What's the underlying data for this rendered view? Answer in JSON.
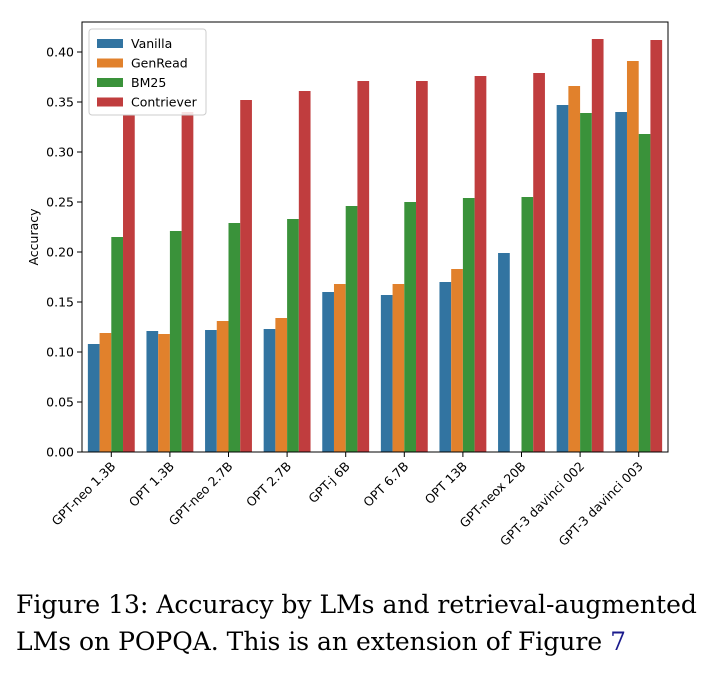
{
  "chart_data": {
    "type": "bar",
    "title": "",
    "xlabel": "",
    "ylabel": "Accuracy",
    "ylim": [
      0,
      0.43
    ],
    "yticks": [
      "0.00",
      "0.05",
      "0.10",
      "0.15",
      "0.20",
      "0.25",
      "0.30",
      "0.35",
      "0.40"
    ],
    "legend_position": "top-left",
    "categories": [
      "GPT-neo 1.3B",
      "OPT 1.3B",
      "GPT-neo 2.7B",
      "OPT 2.7B",
      "GPT-j 6B",
      "OPT 6.7B",
      "OPT 13B",
      "GPT-neox 20B",
      "GPT-3 davinci 002",
      "GPT-3 davinci 003"
    ],
    "series": [
      {
        "name": "Vanilla",
        "color": "#3274a1",
        "values": [
          0.108,
          0.121,
          0.122,
          0.123,
          0.16,
          0.157,
          0.17,
          0.199,
          0.347,
          0.34
        ]
      },
      {
        "name": "GenRead",
        "color": "#e1812c",
        "values": [
          0.119,
          0.118,
          0.131,
          0.134,
          0.168,
          0.168,
          0.183,
          null,
          0.366,
          0.391
        ]
      },
      {
        "name": "BM25",
        "color": "#3a923a",
        "values": [
          0.215,
          0.221,
          0.229,
          0.233,
          0.246,
          0.25,
          0.254,
          0.255,
          0.339,
          0.318
        ]
      },
      {
        "name": "Contriever",
        "color": "#c03d3e",
        "values": [
          0.337,
          0.34,
          0.352,
          0.361,
          0.371,
          0.371,
          0.376,
          0.379,
          0.413,
          0.412
        ]
      }
    ]
  },
  "caption": {
    "label": "Figure 13:",
    "text": " Accuracy by LMs and retrieval-augmented LMs on ",
    "dataset_name": "POPQA",
    "text_after": ". This is an extension of Figure ",
    "figure_ref": "7"
  }
}
